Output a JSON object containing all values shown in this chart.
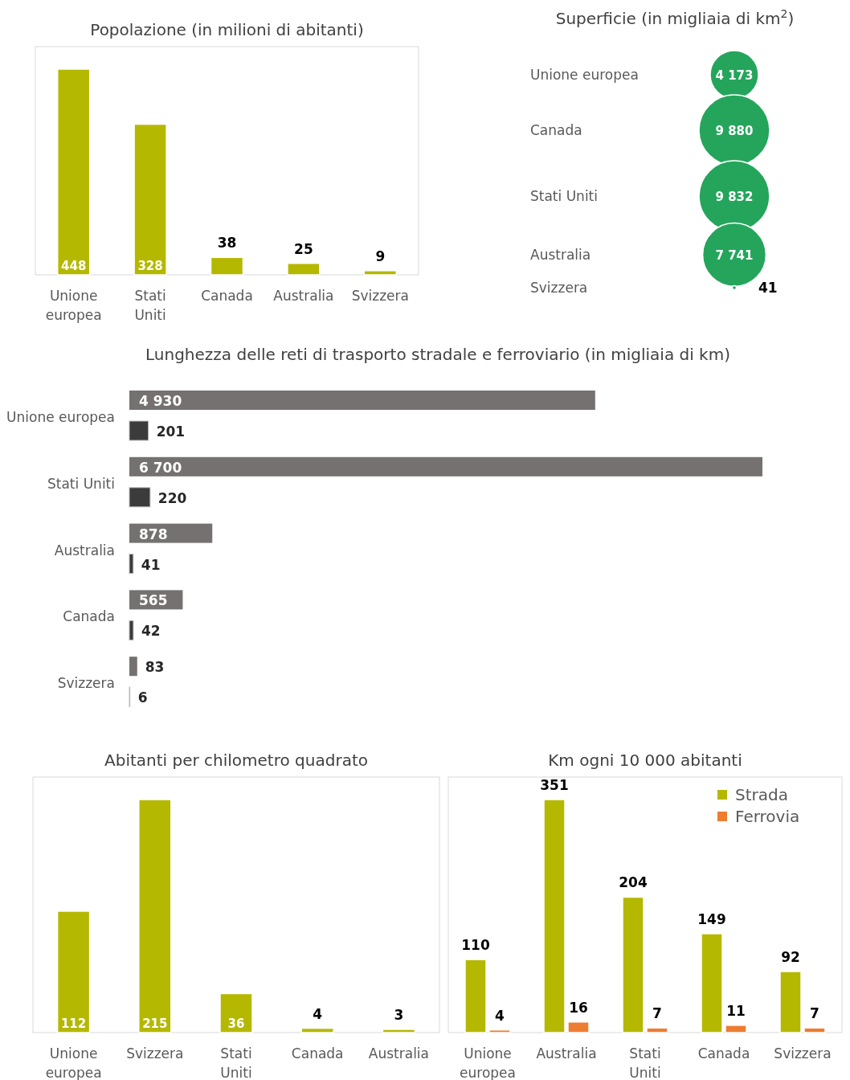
{
  "chart_data": [
    {
      "type": "bar",
      "title": "Popolazione (in milioni di abitanti)",
      "categories": [
        "Unione europea",
        "Stati Uniti",
        "Canada",
        "Australia",
        "Svizzera"
      ],
      "values": [
        448,
        328,
        38,
        25,
        9
      ],
      "color": "#b5b800",
      "value_labels": [
        "448",
        "328",
        "38",
        "25",
        "9"
      ]
    },
    {
      "type": "other",
      "title": "Superficie (in migliaia di km$^{2}$)",
      "categories": [
        "Unione europea",
        "Canada",
        "Stati Uniti",
        "Australia",
        "Svizzera"
      ],
      "values": [
        4173,
        9880,
        9832,
        7741,
        41
      ],
      "color": "#24a55b",
      "value_labels": [
        "4 173",
        "9 880",
        "9 832",
        "7 741",
        "41"
      ]
    },
    {
      "type": "bar",
      "orientation": "horizontal",
      "title": "Lunghezza delle reti di trasporto stradale e ferroviario (in migliaia di km)",
      "categories": [
        "Unione europea",
        "Stati Uniti",
        "Australia",
        "Canada",
        "Svizzera"
      ],
      "series": [
        {
          "color": "#767171",
          "values": [
            4930,
            6700,
            878,
            565,
            83
          ],
          "value_labels": [
            "4 930",
            "6 700",
            "878",
            "565",
            "83"
          ]
        },
        {
          "color": "#3b3b3b",
          "values": [
            201,
            220,
            41,
            42,
            6
          ],
          "value_labels": [
            "201",
            "220",
            "41",
            "42",
            "6"
          ]
        }
      ]
    },
    {
      "type": "bar",
      "title": "Abitanti per chilometro quadrato",
      "categories": [
        "Unione europea",
        "Svizzera",
        "Stati Uniti",
        "Canada",
        "Australia"
      ],
      "values": [
        112,
        215,
        36,
        4,
        3
      ],
      "color": "#b5b800",
      "value_labels": [
        "112",
        "215",
        "36",
        "4",
        "3"
      ]
    },
    {
      "type": "bar",
      "title": "Km ogni 10 000 abitanti",
      "categories": [
        "Unione europea",
        "Australia",
        "Stati Uniti",
        "Canada",
        "Svizzera"
      ],
      "legend": "top right",
      "series": [
        {
          "name": "Strada",
          "color": "#b5b800",
          "values": [
            110,
            351,
            204,
            149,
            92
          ],
          "value_labels": [
            "110",
            "351",
            "204",
            "149",
            "92"
          ]
        },
        {
          "name": "Ferrovia",
          "color": "#ed7d31",
          "values": [
            4,
            16,
            7,
            11,
            7
          ],
          "value_labels": [
            "4",
            "16",
            "7",
            "11",
            "7"
          ]
        }
      ]
    }
  ]
}
